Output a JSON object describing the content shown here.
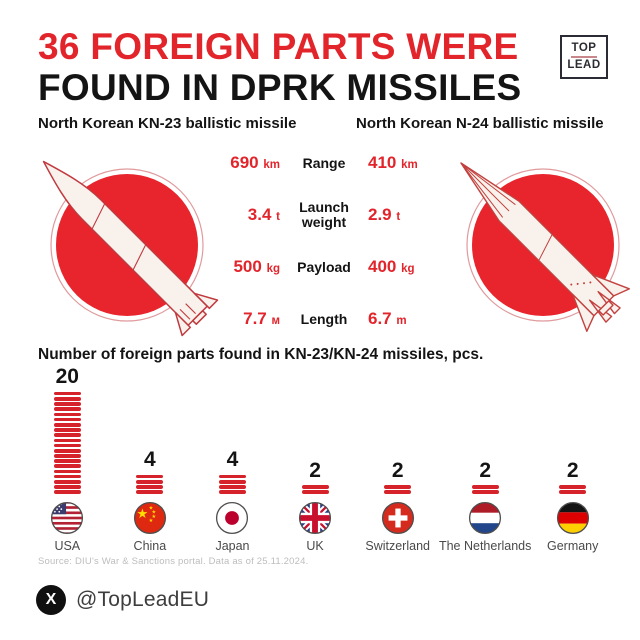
{
  "colors": {
    "accent_red": "#e2242b",
    "bar_red": "#d6222a",
    "muted_gray": "#bdbdbd",
    "label_gray": "#4a4a4a"
  },
  "header": {
    "title_line1": "36 FOREIGN PARTS WERE",
    "title_line2": "FOUND IN DPRK MISSILES",
    "logo_top": "TOP",
    "logo_bottom": "LEAD"
  },
  "missiles": {
    "left_title": "North Korean KN-23 ballistic missile",
    "right_title": "North Korean N-24 ballistic missile",
    "stats": [
      {
        "kn23": "690",
        "kn23_unit": "km",
        "label": "Range",
        "n24": "410",
        "n24_unit": "km"
      },
      {
        "kn23": "3.4",
        "kn23_unit": "t",
        "label": "Launch weight",
        "n24": "2.9",
        "n24_unit": "t"
      },
      {
        "kn23": "500",
        "kn23_unit": "kg",
        "label": "Payload",
        "n24": "400",
        "n24_unit": "kg"
      },
      {
        "kn23": "7.7",
        "kn23_unit": "м",
        "label": "Length",
        "n24": "6.7",
        "n24_unit": "m"
      }
    ]
  },
  "chart_data": {
    "type": "bar",
    "title": "Number of foreign parts found in KN-23/KN-24 missiles, pcs.",
    "categories": [
      "USA",
      "China",
      "Japan",
      "UK",
      "Switzerland",
      "The Netherlands",
      "Germany"
    ],
    "values": [
      20,
      4,
      4,
      2,
      2,
      2,
      2
    ],
    "total": 36,
    "unit": "pcs",
    "style": "stacked-segment-columns",
    "flags": [
      "flag-usa",
      "flag-china",
      "flag-japan",
      "flag-uk",
      "flag-switzerland",
      "flag-netherlands",
      "flag-germany"
    ],
    "legend": false,
    "grid": false
  },
  "source": "Source: DIU's War & Sanctions portal. Data as of 25.11.2024.",
  "footer": {
    "icon": "x-logo",
    "handle": "@TopLeadEU"
  }
}
